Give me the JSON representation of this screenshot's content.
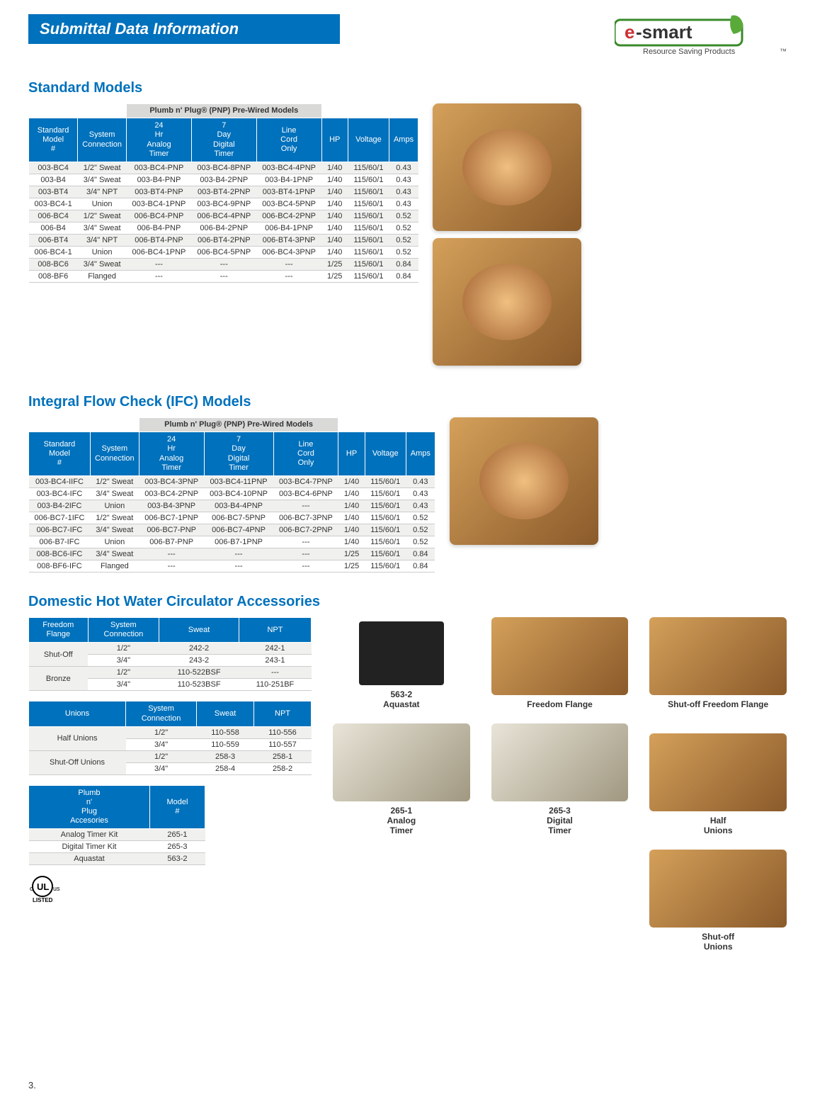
{
  "header": {
    "title": "Submittal Data Information"
  },
  "logo": {
    "brand": "e-smart",
    "tagline": "Resource Saving Products",
    "tm": "™"
  },
  "standard": {
    "title": "Standard Models",
    "pnp_header": "Plumb n' Plug® (PNP) Pre-Wired Models",
    "cols": [
      "Standard Model #",
      "System Connection",
      "24 Hr Analog Timer",
      "7 Day Digital Timer",
      "Line Cord Only",
      "HP",
      "Voltage",
      "Amps"
    ],
    "rows": [
      [
        "003-BC4",
        "1/2\" Sweat",
        "003-BC4-PNP",
        "003-BC4-8PNP",
        "003-BC4-4PNP",
        "1/40",
        "115/60/1",
        "0.43"
      ],
      [
        "003-B4",
        "3/4\" Sweat",
        "003-B4-PNP",
        "003-B4-2PNP",
        "003-B4-1PNP",
        "1/40",
        "115/60/1",
        "0.43"
      ],
      [
        "003-BT4",
        "3/4\" NPT",
        "003-BT4-PNP",
        "003-BT4-2PNP",
        "003-BT4-1PNP",
        "1/40",
        "115/60/1",
        "0.43"
      ],
      [
        "003-BC4-1",
        "Union",
        "003-BC4-1PNP",
        "003-BC4-9PNP",
        "003-BC4-5PNP",
        "1/40",
        "115/60/1",
        "0.43"
      ],
      [
        "006-BC4",
        "1/2\" Sweat",
        "006-BC4-PNP",
        "006-BC4-4PNP",
        "006-BC4-2PNP",
        "1/40",
        "115/60/1",
        "0.52"
      ],
      [
        "006-B4",
        "3/4\" Sweat",
        "006-B4-PNP",
        "006-B4-2PNP",
        "006-B4-1PNP",
        "1/40",
        "115/60/1",
        "0.52"
      ],
      [
        "006-BT4",
        "3/4\" NPT",
        "006-BT4-PNP",
        "006-BT4-2PNP",
        "006-BT4-3PNP",
        "1/40",
        "115/60/1",
        "0.52"
      ],
      [
        "006-BC4-1",
        "Union",
        "006-BC4-1PNP",
        "006-BC4-5PNP",
        "006-BC4-3PNP",
        "1/40",
        "115/60/1",
        "0.52"
      ],
      [
        "008-BC6",
        "3/4\" Sweat",
        "---",
        "---",
        "---",
        "1/25",
        "115/60/1",
        "0.84"
      ],
      [
        "008-BF6",
        "Flanged",
        "---",
        "---",
        "---",
        "1/25",
        "115/60/1",
        "0.84"
      ]
    ]
  },
  "ifc": {
    "title": "Integral Flow Check (IFC) Models",
    "pnp_header": "Plumb n' Plug® (PNP) Pre-Wired Models",
    "cols": [
      "Standard Model #",
      "System Connection",
      "24 Hr Analog Timer",
      "7 Day Digital Timer",
      "Line Cord Only",
      "HP",
      "Voltage",
      "Amps"
    ],
    "rows": [
      [
        "003-BC4-IIFC",
        "1/2\" Sweat",
        "003-BC4-3PNP",
        "003-BC4-11PNP",
        "003-BC4-7PNP",
        "1/40",
        "115/60/1",
        "0.43"
      ],
      [
        "003-BC4-IFC",
        "3/4\" Sweat",
        "003-BC4-2PNP",
        "003-BC4-10PNP",
        "003-BC4-6PNP",
        "1/40",
        "115/60/1",
        "0.43"
      ],
      [
        "003-B4-2IFC",
        "Union",
        "003-B4-3PNP",
        "003-B4-4PNP",
        "---",
        "1/40",
        "115/60/1",
        "0.43"
      ],
      [
        "006-BC7-1IFC",
        "1/2\" Sweat",
        "006-BC7-1PNP",
        "006-BC7-5PNP",
        "006-BC7-3PNP",
        "1/40",
        "115/60/1",
        "0.52"
      ],
      [
        "006-BC7-IFC",
        "3/4\" Sweat",
        "006-BC7-PNP",
        "006-BC7-4PNP",
        "006-BC7-2PNP",
        "1/40",
        "115/60/1",
        "0.52"
      ],
      [
        "006-B7-IFC",
        "Union",
        "006-B7-PNP",
        "006-B7-1PNP",
        "---",
        "1/40",
        "115/60/1",
        "0.52"
      ],
      [
        "008-BC6-IFC",
        "3/4\" Sweat",
        "---",
        "---",
        "---",
        "1/25",
        "115/60/1",
        "0.84"
      ],
      [
        "008-BF6-IFC",
        "Flanged",
        "---",
        "---",
        "---",
        "1/25",
        "115/60/1",
        "0.84"
      ]
    ]
  },
  "accessories": {
    "title": "Domestic Hot Water Circulator Accessories",
    "flange": {
      "cols": [
        "Freedom Flange",
        "System Connection",
        "Sweat",
        "NPT"
      ],
      "rows": [
        [
          "Shut-Off",
          "1/2\"",
          "242-2",
          "242-1"
        ],
        [
          "",
          "3/4\"",
          "243-2",
          "243-1"
        ],
        [
          "Bronze",
          "1/2\"",
          "110-522BSF",
          "---"
        ],
        [
          "",
          "3/4\"",
          "110-523BSF",
          "110-251BF"
        ]
      ]
    },
    "unions": {
      "cols": [
        "Unions",
        "System Connection",
        "Sweat",
        "NPT"
      ],
      "rows": [
        [
          "Half Unions",
          "1/2\"",
          "110-558",
          "110-556"
        ],
        [
          "",
          "3/4\"",
          "110-559",
          "110-557"
        ],
        [
          "Shut-Off Unions",
          "1/2\"",
          "258-3",
          "258-1"
        ],
        [
          "",
          "3/4\"",
          "258-4",
          "258-2"
        ]
      ]
    },
    "pnp_acc": {
      "cols": [
        "Plumb n' Plug Accesories",
        "Model #"
      ],
      "rows": [
        [
          "Analog Timer Kit",
          "265-1"
        ],
        [
          "Digital Timer Kit",
          "265-3"
        ],
        [
          "Aquastat",
          "563-2"
        ]
      ]
    },
    "images": {
      "aquastat": "563-2\nAquastat",
      "freedom_flange": "Freedom Flange",
      "shutoff_flange": "Shut-off Freedom Flange",
      "analog_timer": "265-1\nAnalog\nTimer",
      "digital_timer": "265-3\nDigital\nTimer",
      "half_unions": "Half\nUnions",
      "shutoff_unions": "Shut-off\nUnions"
    }
  },
  "page_num": "3.",
  "colors": {
    "brand_blue": "#0071bc",
    "alt_row": "#f0f0ee",
    "pnp_bg": "#d9dad8"
  }
}
